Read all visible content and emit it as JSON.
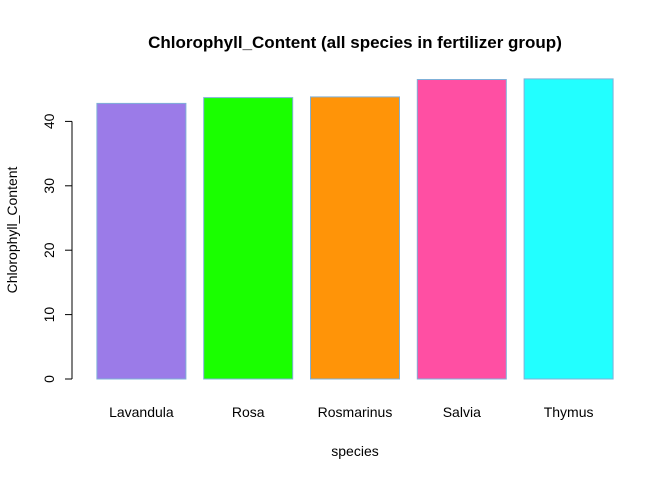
{
  "chart_data": {
    "type": "bar",
    "title": "Chlorophyll_Content (all species in fertilizer group)",
    "xlabel": "species",
    "ylabel": "Chlorophyll_Content",
    "categories": [
      "Lavandula",
      "Rosa",
      "Rosmarinus",
      "Salvia",
      "Thymus"
    ],
    "values": [
      42.8,
      43.7,
      43.8,
      46.5,
      46.6
    ],
    "colors": [
      "#9b7be8",
      "#1aff00",
      "#ff9408",
      "#ff4fa3",
      "#22ffff"
    ],
    "bar_border_color": "#7fb0d8",
    "ylim": [
      0,
      48
    ],
    "yticks": [
      0,
      10,
      20,
      30,
      40
    ],
    "grid": false,
    "legend": "none"
  }
}
